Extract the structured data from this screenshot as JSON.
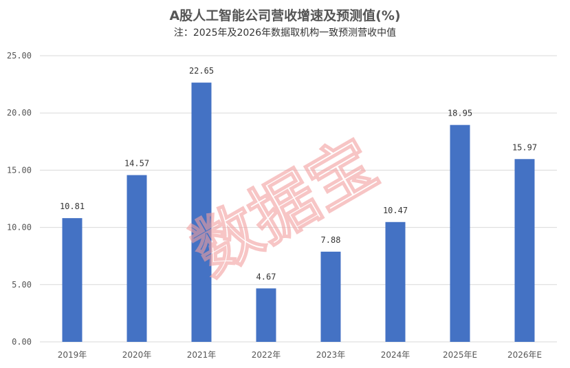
{
  "chart_data": {
    "type": "bar",
    "title": "A股人工智能公司营收增速及预测值(%)",
    "subtitle": "注：2025年及2026年数据取机构一致预测营收中值",
    "categories": [
      "2019年",
      "2020年",
      "2021年",
      "2022年",
      "2023年",
      "2024年",
      "2025年E",
      "2026年E"
    ],
    "values": [
      10.81,
      14.57,
      22.65,
      4.67,
      7.88,
      10.47,
      18.95,
      15.97
    ],
    "value_labels": [
      "10.81",
      "14.57",
      "22.65",
      "4.67",
      "7.88",
      "10.47",
      "18.95",
      "15.97"
    ],
    "ylim": [
      0,
      25
    ],
    "yticks": [
      "0.00",
      "5.00",
      "10.00",
      "15.00",
      "20.00",
      "25.00"
    ],
    "ytick_values": [
      0,
      5,
      10,
      15,
      20,
      25
    ],
    "grid": true,
    "bar_color": "#4472c4",
    "grid_color": "#d9d9d9",
    "watermark": "数据宝",
    "watermark_color": "#f2a0a0"
  }
}
